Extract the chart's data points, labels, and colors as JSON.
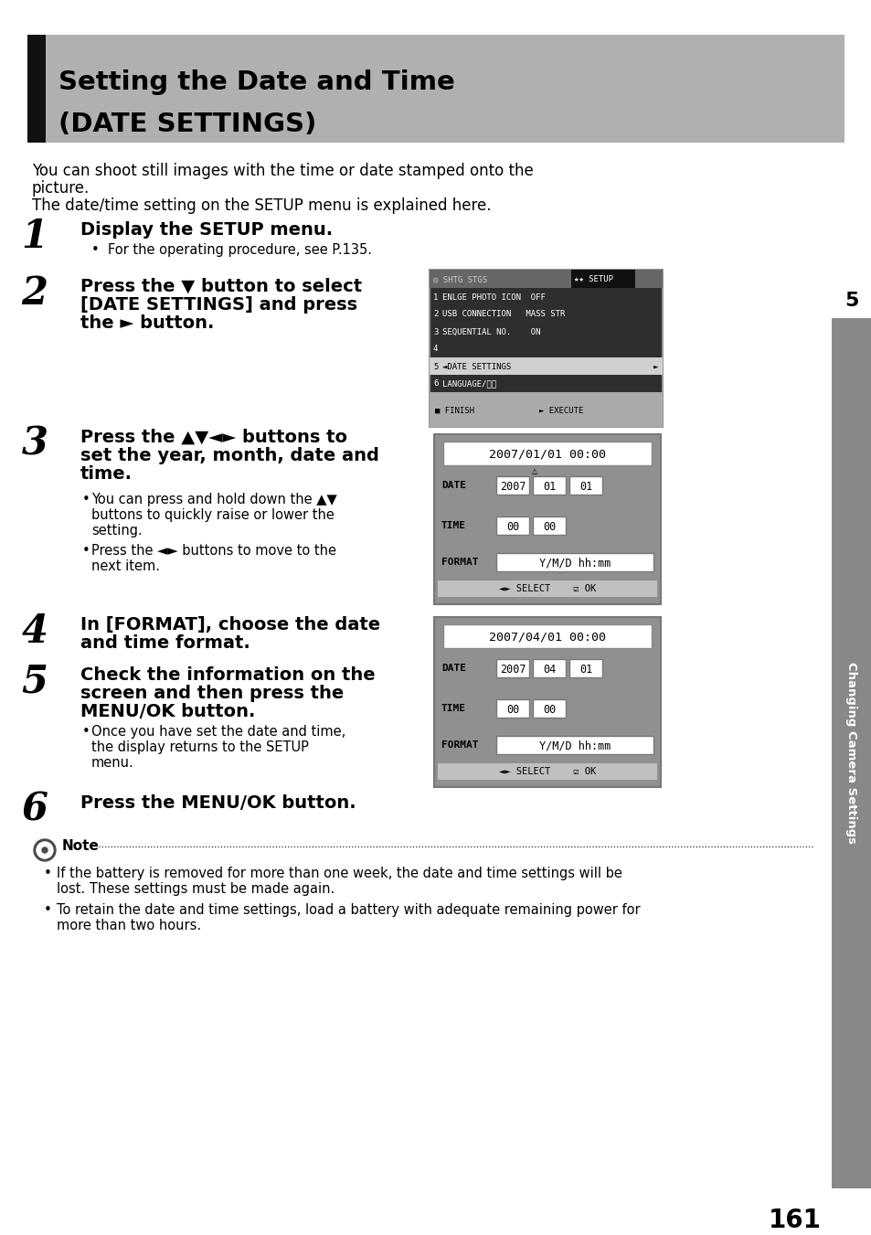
{
  "page_bg": "#ffffff",
  "title_bg": "#aaaaaa",
  "title_bar_color": "#111111",
  "title_line1": "Setting the Date and Time",
  "title_line2": "(DATE SETTINGS)",
  "body_line1": "You can shoot still images with the time or date stamped onto the",
  "body_line2": "picture.",
  "body_line3": "The date/time setting on the SETUP menu is explained here.",
  "step1_num": "1",
  "step1_head": "Display the SETUP menu.",
  "step1_sub": "For the operating procedure, see P.135.",
  "step2_num": "2",
  "step2_head_lines": [
    "Press the ▼ button to select",
    "[DATE SETTINGS] and press",
    "the ► button."
  ],
  "step3_num": "3",
  "step3_head_lines": [
    "Press the ▲▼◄► buttons to",
    "set the year, month, date and",
    "time."
  ],
  "step3_sub1_lines": [
    "You can press and hold down the ▲▼",
    "buttons to quickly raise or lower the",
    "setting."
  ],
  "step3_sub2_lines": [
    "Press the ◄► buttons to move to the",
    "next item."
  ],
  "step4_num": "4",
  "step4_head_lines": [
    "In [FORMAT], choose the date",
    "and time format."
  ],
  "step5_num": "5",
  "step5_head_lines": [
    "Check the information on the",
    "screen and then press the",
    "MENU/OK button."
  ],
  "step5_sub_lines": [
    "Once you have set the date and time,",
    "the display returns to the SETUP",
    "menu."
  ],
  "step6_num": "6",
  "step6_head": "Press the MENU/OK button.",
  "note_title": "Note",
  "note_bullet1_lines": [
    "If the battery is removed for more than one week, the date and time settings will be",
    "lost. These settings must be made again."
  ],
  "note_bullet2_lines": [
    "To retain the date and time settings, load a battery with adequate remaining power for",
    "more than two hours."
  ],
  "page_num": "161",
  "side_label": "Changing Camera Settings",
  "side_num": "5",
  "sc1_menu": [
    [
      "1",
      "ENLGE PHOTO ICON  OFF"
    ],
    [
      "2",
      "USB CONNECTION   MASS STR"
    ],
    [
      "3",
      "SEQUENTIAL NO.    ON"
    ],
    [
      "4",
      ""
    ],
    [
      "5",
      "DATE SETTINGS",
      true
    ],
    [
      "6",
      "LANGUAGE/言語"
    ]
  ],
  "screen2_title": "2007/01/01 00:00",
  "screen2_date": [
    "2007",
    "01",
    "01"
  ],
  "screen2_time": [
    "00",
    "00"
  ],
  "screen2_format": "Y/M/D hh:mm",
  "screen3_title": "2007/04/01 00:00",
  "screen3_date": [
    "2007",
    "04",
    "01"
  ],
  "screen3_time": [
    "00",
    "00"
  ],
  "screen3_format": "Y/M/D hh:mm"
}
